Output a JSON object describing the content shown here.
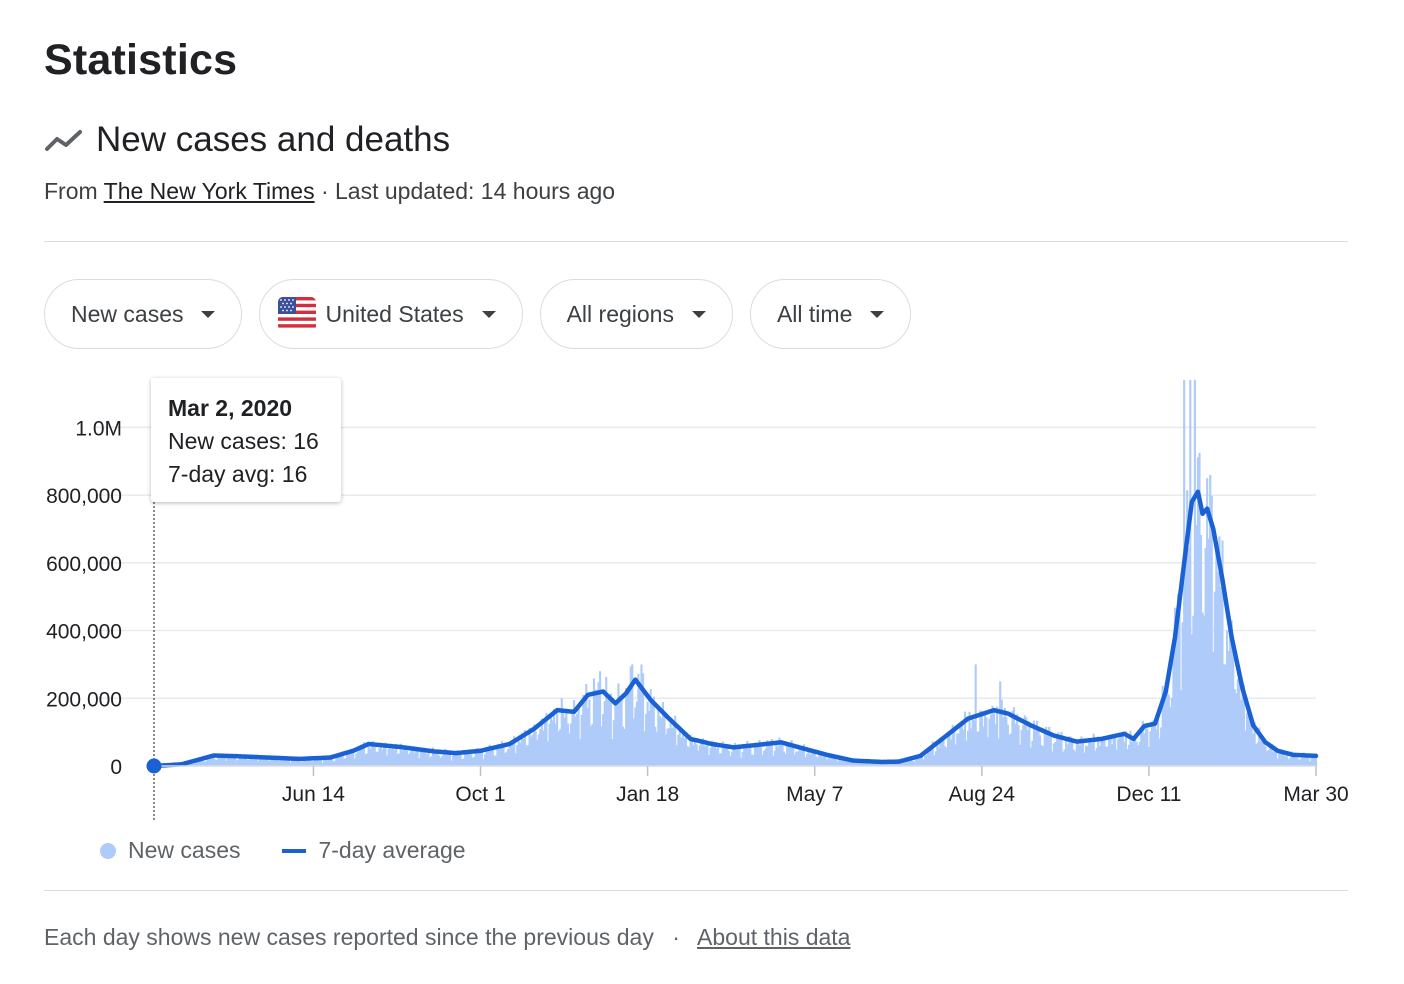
{
  "page": {
    "title": "Statistics",
    "subtitle": "New cases and deaths",
    "source_prefix": "From",
    "source_name": "The New York Times",
    "source_suffix": "· Last updated: 14 hours ago"
  },
  "filters": {
    "metric": "New cases",
    "location": "United States",
    "regions": "All regions",
    "range": "All time"
  },
  "tooltip": {
    "date": "Mar 2, 2020",
    "cases_line": "New cases: 16",
    "avg_line": "7-day avg: 16"
  },
  "legend": {
    "bars": "New cases",
    "line": "7-day average"
  },
  "footer": {
    "note": "Each day shows new cases reported since the previous day",
    "separator": "·",
    "link": "About this data"
  },
  "colors": {
    "bars": "#aecbfa",
    "line": "#1a62d3",
    "grid": "#e8eaed",
    "axis_text": "#202124"
  },
  "chart_data": {
    "type": "bar",
    "overlay": "line",
    "x_range": [
      "2020-03-02",
      "2022-03-30"
    ],
    "ylim": [
      0,
      1140000
    ],
    "y_ticks": [
      0,
      200000,
      400000,
      600000,
      800000,
      1000000
    ],
    "y_tick_labels": [
      "0",
      "200,000",
      "400,000",
      "600,000",
      "800,000",
      "1.0M"
    ],
    "x_ticks": [
      {
        "date": "2020-06-14",
        "label": "Jun 14"
      },
      {
        "date": "2020-10-01",
        "label": "Oct 1"
      },
      {
        "date": "2021-01-18",
        "label": "Jan 18"
      },
      {
        "date": "2021-05-07",
        "label": "May 7"
      },
      {
        "date": "2021-08-24",
        "label": "Aug 24"
      },
      {
        "date": "2021-12-11",
        "label": "Dec 11"
      },
      {
        "date": "2022-03-30",
        "label": "Mar 30"
      }
    ],
    "series": [
      {
        "name": "7-day average",
        "kind": "line",
        "points": [
          [
            "2020-03-02",
            16
          ],
          [
            "2020-03-20",
            5000
          ],
          [
            "2020-04-10",
            31000
          ],
          [
            "2020-04-25",
            29000
          ],
          [
            "2020-05-15",
            25000
          ],
          [
            "2020-06-05",
            21000
          ],
          [
            "2020-06-25",
            25000
          ],
          [
            "2020-07-10",
            45000
          ],
          [
            "2020-07-20",
            65000
          ],
          [
            "2020-08-10",
            56000
          ],
          [
            "2020-09-01",
            43000
          ],
          [
            "2020-09-15",
            38000
          ],
          [
            "2020-10-01",
            45000
          ],
          [
            "2020-10-20",
            65000
          ],
          [
            "2020-11-05",
            110000
          ],
          [
            "2020-11-20",
            165000
          ],
          [
            "2020-12-01",
            160000
          ],
          [
            "2020-12-10",
            210000
          ],
          [
            "2020-12-20",
            220000
          ],
          [
            "2020-12-28",
            185000
          ],
          [
            "2021-01-04",
            215000
          ],
          [
            "2021-01-10",
            255000
          ],
          [
            "2021-01-20",
            195000
          ],
          [
            "2021-02-01",
            140000
          ],
          [
            "2021-02-15",
            80000
          ],
          [
            "2021-03-01",
            65000
          ],
          [
            "2021-03-15",
            55000
          ],
          [
            "2021-04-01",
            63000
          ],
          [
            "2021-04-15",
            70000
          ],
          [
            "2021-05-01",
            50000
          ],
          [
            "2021-05-15",
            33000
          ],
          [
            "2021-06-01",
            16000
          ],
          [
            "2021-06-20",
            12000
          ],
          [
            "2021-07-01",
            13000
          ],
          [
            "2021-07-15",
            30000
          ],
          [
            "2021-08-01",
            90000
          ],
          [
            "2021-08-15",
            140000
          ],
          [
            "2021-09-01",
            165000
          ],
          [
            "2021-09-10",
            155000
          ],
          [
            "2021-09-25",
            120000
          ],
          [
            "2021-10-10",
            90000
          ],
          [
            "2021-10-25",
            72000
          ],
          [
            "2021-11-10",
            80000
          ],
          [
            "2021-11-25",
            95000
          ],
          [
            "2021-12-01",
            80000
          ],
          [
            "2021-12-08",
            118000
          ],
          [
            "2021-12-15",
            125000
          ],
          [
            "2021-12-22",
            220000
          ],
          [
            "2021-12-28",
            380000
          ],
          [
            "2022-01-03",
            600000
          ],
          [
            "2022-01-08",
            780000
          ],
          [
            "2022-01-12",
            810000
          ],
          [
            "2022-01-15",
            745000
          ],
          [
            "2022-01-18",
            760000
          ],
          [
            "2022-01-22",
            700000
          ],
          [
            "2022-01-28",
            550000
          ],
          [
            "2022-02-03",
            380000
          ],
          [
            "2022-02-10",
            230000
          ],
          [
            "2022-02-17",
            120000
          ],
          [
            "2022-02-25",
            70000
          ],
          [
            "2022-03-05",
            45000
          ],
          [
            "2022-03-15",
            33000
          ],
          [
            "2022-03-30",
            30000
          ]
        ]
      },
      {
        "name": "New cases",
        "kind": "bars",
        "daily_from_average": true,
        "peak_days": [
          [
            "2020-12-18",
            280000
          ],
          [
            "2021-01-08",
            300000
          ],
          [
            "2021-01-14",
            300000
          ],
          [
            "2021-08-20",
            300000
          ],
          [
            "2021-09-05",
            250000
          ],
          [
            "2022-01-03",
            1140000
          ],
          [
            "2022-01-07",
            1140000
          ],
          [
            "2022-01-10",
            1140000
          ],
          [
            "2022-01-24",
            650000
          ],
          [
            "2022-01-31",
            400000
          ]
        ]
      }
    ],
    "highlight": {
      "date": "2020-03-02",
      "value": 16
    }
  }
}
